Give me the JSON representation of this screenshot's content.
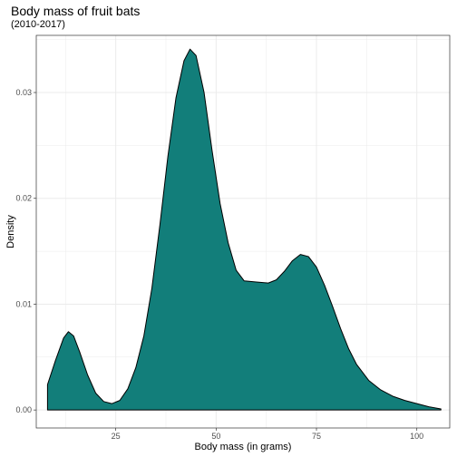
{
  "chart_data": {
    "type": "area",
    "title": "Body mass of fruit bats",
    "subtitle": "(2010-2017)",
    "xlabel": "Body mass (in grams)",
    "ylabel": "Density",
    "xlim": [
      5.2,
      108.2
    ],
    "ylim": [
      -0.0017,
      0.0354
    ],
    "x_ticks": [
      25,
      50,
      75,
      100
    ],
    "x_tick_labels": [
      "25",
      "50",
      "75",
      "100"
    ],
    "y_ticks": [
      0.0,
      0.01,
      0.02,
      0.03
    ],
    "y_tick_labels": [
      "0.00",
      "0.01",
      "0.02",
      "0.03"
    ],
    "grid": true,
    "fill_color": "#127e7a",
    "line_color": "#000000",
    "points": [
      [
        8.0,
        0.0024
      ],
      [
        10.0,
        0.0047
      ],
      [
        12.0,
        0.0068
      ],
      [
        13.2,
        0.0074
      ],
      [
        14.5,
        0.007
      ],
      [
        16.0,
        0.0055
      ],
      [
        18.0,
        0.0033
      ],
      [
        20.0,
        0.0016
      ],
      [
        22.0,
        0.0008
      ],
      [
        24.0,
        0.0006
      ],
      [
        26.0,
        0.0009
      ],
      [
        28.0,
        0.002
      ],
      [
        30.0,
        0.004
      ],
      [
        32.0,
        0.007
      ],
      [
        34.0,
        0.0115
      ],
      [
        36.0,
        0.0175
      ],
      [
        38.0,
        0.024
      ],
      [
        40.0,
        0.0295
      ],
      [
        42.0,
        0.033
      ],
      [
        43.5,
        0.0341
      ],
      [
        45.0,
        0.0335
      ],
      [
        47.0,
        0.03
      ],
      [
        49.0,
        0.0245
      ],
      [
        51.0,
        0.0195
      ],
      [
        53.0,
        0.0158
      ],
      [
        55.0,
        0.0132
      ],
      [
        57.0,
        0.0122
      ],
      [
        60.0,
        0.0121
      ],
      [
        63.0,
        0.012
      ],
      [
        65.0,
        0.0123
      ],
      [
        67.0,
        0.0131
      ],
      [
        69.0,
        0.0141
      ],
      [
        71.0,
        0.0147
      ],
      [
        73.0,
        0.0145
      ],
      [
        75.0,
        0.0135
      ],
      [
        77.0,
        0.0118
      ],
      [
        79.0,
        0.0098
      ],
      [
        81.0,
        0.0077
      ],
      [
        83.0,
        0.0058
      ],
      [
        85.0,
        0.0043
      ],
      [
        88.0,
        0.0028
      ],
      [
        91.0,
        0.0019
      ],
      [
        94.0,
        0.0013
      ],
      [
        97.0,
        0.0009
      ],
      [
        100.0,
        0.0006
      ],
      [
        103.0,
        0.0003
      ],
      [
        106.0,
        0.0001
      ]
    ]
  }
}
